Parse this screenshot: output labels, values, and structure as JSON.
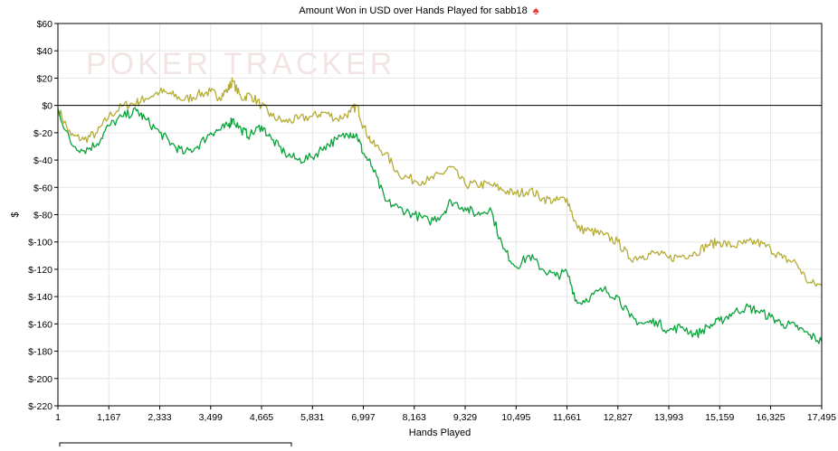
{
  "chart_data": {
    "type": "line",
    "title": "Amount Won in USD over Hands Played for sabb18",
    "title_icon": "spade-icon",
    "watermark": "POKER TRACKER",
    "xlabel": "Hands Played",
    "ylabel": "$",
    "xlim": [
      1,
      17495
    ],
    "ylim": [
      -220,
      60
    ],
    "x_ticks": [
      "1",
      "1,167",
      "2,333",
      "3,499",
      "4,665",
      "5,831",
      "6,997",
      "8,163",
      "9,329",
      "10,495",
      "11,661",
      "12,827",
      "13,993",
      "15,159",
      "16,325",
      "17,495"
    ],
    "y_ticks": [
      "$60",
      "$40",
      "$20",
      "$0",
      "$-20",
      "$-40",
      "$-60",
      "$-80",
      "$-100",
      "$-120",
      "$-140",
      "$-160",
      "$-180",
      "$-200",
      "$-220"
    ],
    "grid": true,
    "legend": "bottom-left",
    "series": [
      {
        "color": "#b5ac35",
        "x": [
          1,
          300,
          600,
          900,
          1167,
          1500,
          1800,
          2000,
          2333,
          2600,
          2900,
          3200,
          3499,
          3700,
          3900,
          4000,
          4200,
          4400,
          4665,
          4900,
          5200,
          5500,
          5831,
          6100,
          6400,
          6700,
          6850,
          6997,
          7200,
          7500,
          7800,
          8163,
          8500,
          8800,
          9000,
          9329,
          9600,
          9900,
          10200,
          10495,
          10800,
          11100,
          11400,
          11661,
          11900,
          12200,
          12500,
          12827,
          13100,
          13400,
          13700,
          13993,
          14300,
          14600,
          14900,
          15159,
          15450,
          15750,
          16000,
          16325,
          16600,
          16900,
          17200,
          17495
        ],
        "values": [
          -2,
          -22,
          -25,
          -20,
          -8,
          0,
          2,
          5,
          10,
          8,
          4,
          8,
          10,
          6,
          12,
          18,
          5,
          8,
          0,
          -8,
          -12,
          -10,
          -8,
          -5,
          -10,
          -5,
          0,
          -15,
          -28,
          -35,
          -50,
          -55,
          -55,
          -50,
          -45,
          -58,
          -58,
          -58,
          -62,
          -65,
          -62,
          -68,
          -70,
          -68,
          -90,
          -92,
          -95,
          -100,
          -112,
          -110,
          -108,
          -112,
          -110,
          -108,
          -102,
          -100,
          -103,
          -101,
          -100,
          -105,
          -112,
          -115,
          -130,
          -132
        ]
      },
      {
        "color": "#0aa33a",
        "x": [
          1,
          300,
          600,
          900,
          1167,
          1500,
          1800,
          2000,
          2333,
          2600,
          2900,
          3200,
          3499,
          3700,
          3900,
          4000,
          4200,
          4400,
          4665,
          4900,
          5200,
          5500,
          5831,
          6100,
          6400,
          6700,
          6850,
          6997,
          7200,
          7500,
          7800,
          8163,
          8500,
          8800,
          9000,
          9329,
          9600,
          9900,
          10200,
          10495,
          10800,
          11100,
          11400,
          11661,
          11900,
          12200,
          12500,
          12827,
          13100,
          13400,
          13700,
          13993,
          14300,
          14600,
          14900,
          15159,
          15450,
          15750,
          16000,
          16325,
          16600,
          16900,
          17200,
          17495
        ],
        "values": [
          -3,
          -28,
          -33,
          -28,
          -15,
          -8,
          -4,
          -10,
          -20,
          -28,
          -35,
          -30,
          -20,
          -18,
          -15,
          -10,
          -18,
          -22,
          -15,
          -25,
          -35,
          -40,
          -38,
          -30,
          -25,
          -20,
          -22,
          -35,
          -45,
          -70,
          -75,
          -80,
          -85,
          -80,
          -70,
          -75,
          -80,
          -75,
          -105,
          -118,
          -110,
          -120,
          -125,
          -122,
          -145,
          -140,
          -135,
          -140,
          -155,
          -160,
          -158,
          -165,
          -162,
          -168,
          -162,
          -158,
          -152,
          -148,
          -150,
          -155,
          -160,
          -162,
          -168,
          -173
        ]
      }
    ],
    "colors": {
      "grid": "#e6e6e6",
      "axis": "#000000",
      "zero_line": "#000000",
      "watermark": "#f3e4e4"
    }
  }
}
